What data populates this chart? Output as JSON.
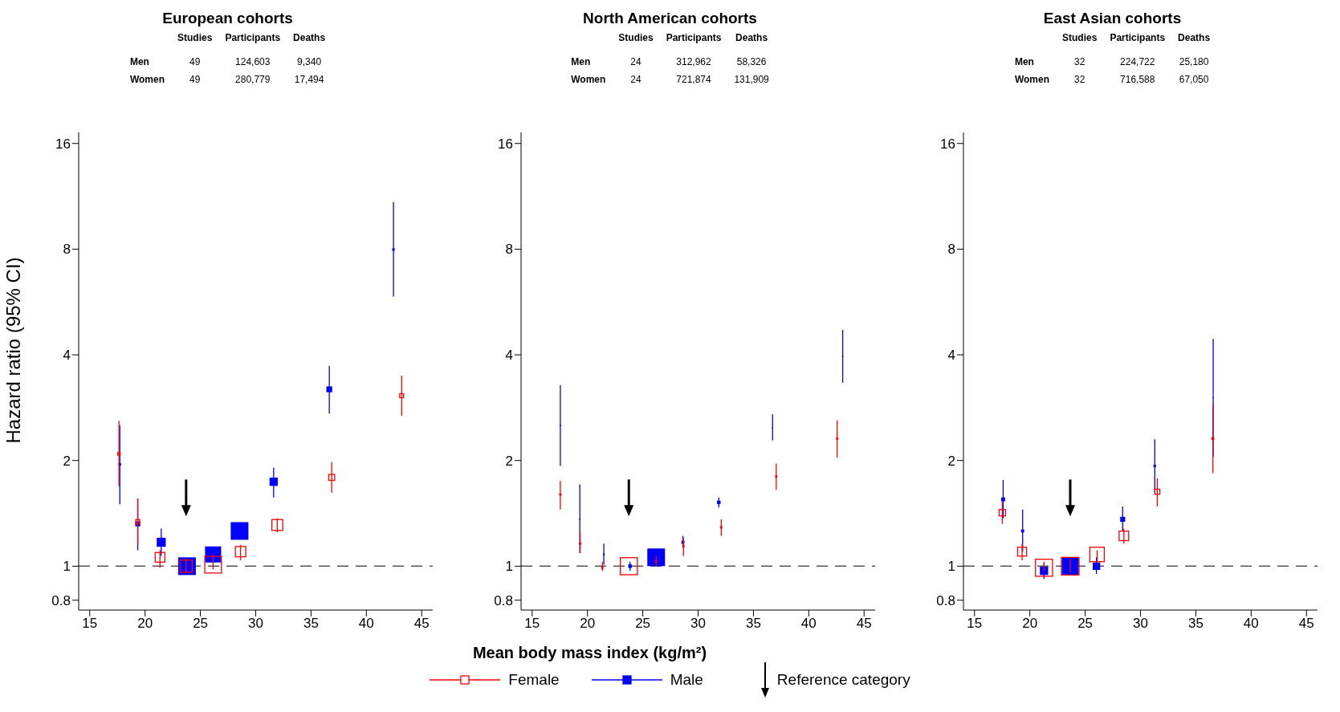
{
  "chart_data": [
    {
      "type": "scatter",
      "title": "European cohorts",
      "ylabel": "Hazard ratio (95% CI)",
      "legend": "bottom",
      "log": "y",
      "marker": "square",
      "xlim": [
        14,
        46
      ],
      "xticks": [
        15,
        20,
        25,
        30,
        35,
        40,
        45
      ],
      "ylim": [
        0.75,
        17.2
      ],
      "yticks": [
        0.8,
        1,
        2,
        4,
        8,
        16
      ],
      "ref_lines": [
        {
          "axis": "y",
          "value": 1,
          "color": "#555555",
          "line_style": "dashed"
        }
      ],
      "annotations": [
        "Studies",
        "Participants",
        "Deaths",
        "Men",
        "49",
        "124,603",
        "9,340",
        "Women",
        "49",
        "280,779",
        "17,494",
        "Reference category"
      ],
      "series": [
        {
          "name": "Female",
          "color": "#ff0000",
          "x": [
            17.64,
            19.34,
            21.35,
            23.71,
            26.15,
            28.63,
            31.95,
            36.87,
            43.19
          ],
          "values": [
            2.09,
            1.34,
            1.06,
            1,
            1.01,
            1.1,
            1.31,
            1.79,
            3.06
          ],
          "errors": [
            [
              1.69,
              2.59
            ],
            [
              1.15,
              1.56
            ],
            [
              0.99,
              1.11
            ],
            [
              0.96,
              1.05
            ],
            [
              0.98,
              1.07
            ],
            [
              1.04,
              1.15
            ],
            [
              1.25,
              1.37
            ],
            [
              1.62,
              1.98
            ],
            [
              2.68,
              3.49
            ]
          ],
          "sizes": [
            0.02,
            0.05,
            0.3,
            0.48,
            0.89,
            0.34,
            0.38,
            0.11,
            0.05
          ]
        },
        {
          "name": "Male",
          "color": "#0000ff",
          "x": [
            17.72,
            19.34,
            21.46,
            23.79,
            26.15,
            28.54,
            31.62,
            36.65,
            42.45
          ],
          "values": [
            1.95,
            1.32,
            1.17,
            1,
            1.08,
            1.26,
            1.74,
            3.19,
            7.98
          ],
          "errors": [
            [
              1.5,
              2.52
            ],
            [
              1.11,
              1.55
            ],
            [
              1.07,
              1.28
            ],
            null,
            [
              1.03,
              1.13
            ],
            [
              1.2,
              1.32
            ],
            [
              1.57,
              1.91
            ],
            [
              2.72,
              3.72
            ],
            [
              5.86,
              10.9
            ]
          ],
          "sizes": [
            0.02,
            0.08,
            0.26,
            1,
            0.83,
            1,
            0.22,
            0.11,
            0.02
          ]
        }
      ]
    },
    {
      "type": "scatter",
      "title": "North American cohorts",
      "xlabel": "Mean body mass index (kg/m²)",
      "log": "y",
      "marker": "square",
      "xlim": [
        14,
        46
      ],
      "xticks": [
        15,
        20,
        25,
        30,
        35,
        40,
        45
      ],
      "ylim": [
        0.75,
        17.2
      ],
      "yticks": [
        0.8,
        1,
        2,
        4,
        8,
        16
      ],
      "ref_lines": [
        {
          "axis": "y",
          "value": 1,
          "color": "#555555",
          "line_style": "dashed"
        }
      ],
      "annotations": [
        "Studies",
        "Participants",
        "Deaths",
        "Men",
        "24",
        "312,962",
        "58,326",
        "Women",
        "24",
        "721,874",
        "131,909"
      ],
      "series": [
        {
          "color": "#ff0000",
          "x": [
            17.55,
            19.34,
            21.35,
            23.74,
            26.21,
            28.68,
            32.09,
            37.06,
            42.57
          ],
          "values": [
            1.6,
            1.16,
            0.99,
            1,
            1.03,
            1.14,
            1.29,
            1.8,
            2.31
          ],
          "errors": [
            [
              1.45,
              1.75
            ],
            [
              1.09,
              1.25
            ],
            [
              0.97,
              1.03
            ],
            null,
            [
              1.0,
              1.07
            ],
            [
              1.07,
              1.2
            ],
            [
              1.22,
              1.36
            ],
            [
              1.65,
              1.96
            ],
            [
              2.04,
              2.6
            ]
          ],
          "sizes": [
            0.005,
            0.005,
            0.005,
            0.93,
            0.005,
            0.005,
            0.005,
            0.005,
            0.005
          ]
        },
        {
          "color": "#0000ff",
          "x": [
            17.55,
            19.31,
            21.48,
            23.85,
            26.21,
            28.63,
            31.87,
            36.73,
            43.07
          ],
          "values": [
            2.52,
            1.36,
            1.08,
            1,
            1.06,
            1.17,
            1.52,
            2.48,
            3.96
          ],
          "errors": [
            [
              1.93,
              3.28
            ],
            [
              1.09,
              1.71
            ],
            [
              1.01,
              1.16
            ],
            [
              0.97,
              1.03
            ],
            null,
            [
              1.13,
              1.22
            ],
            [
              1.47,
              1.57
            ],
            [
              2.28,
              2.71
            ],
            [
              3.33,
              4.71
            ]
          ],
          "sizes": [
            0.005,
            0.005,
            0.01,
            0.04,
            1,
            0.03,
            0.04,
            0.005,
            0.005
          ]
        }
      ]
    },
    {
      "type": "scatter",
      "title": "East Asian cohorts",
      "log": "y",
      "marker": "square",
      "xlim": [
        14,
        46
      ],
      "xticks": [
        15,
        20,
        25,
        30,
        35,
        40,
        45
      ],
      "ylim": [
        0.75,
        17.2
      ],
      "yticks": [
        0.8,
        1,
        2,
        4,
        8,
        16
      ],
      "ref_lines": [
        {
          "axis": "y",
          "value": 1,
          "color": "#555555",
          "line_style": "dashed"
        }
      ],
      "annotations": [
        "Studies",
        "Participants",
        "Deaths",
        "Men",
        "32",
        "224,722",
        "25,180",
        "Women",
        "32",
        "716,588",
        "67,050"
      ],
      "series": [
        {
          "color": "#ff0000",
          "x": [
            17.51,
            19.3,
            21.28,
            23.65,
            26.08,
            28.5,
            31.52,
            36.54
          ],
          "values": [
            1.42,
            1.1,
            0.99,
            1,
            1.08,
            1.22,
            1.63,
            2.31
          ],
          "errors": [
            [
              1.32,
              1.53
            ],
            [
              1.04,
              1.16
            ],
            [
              0.97,
              1.03
            ],
            [
              0.96,
              1.05
            ],
            [
              1.03,
              1.11
            ],
            [
              1.16,
              1.28
            ],
            [
              1.48,
              1.78
            ],
            [
              1.84,
              2.89
            ]
          ],
          "sizes": [
            0.13,
            0.25,
            0.93,
            1,
            0.67,
            0.29,
            0.08,
            0.01
          ]
        },
        {
          "color": "#0000ff",
          "x": [
            17.59,
            19.35,
            21.28,
            23.65,
            26.02,
            28.39,
            31.29,
            36.57
          ],
          "values": [
            1.55,
            1.26,
            0.97,
            1,
            1.0,
            1.36,
            1.93,
            3.02
          ],
          "errors": [
            [
              1.37,
              1.76
            ],
            [
              1.1,
              1.45
            ],
            [
              0.92,
              1.02
            ],
            null,
            [
              0.95,
              1.06
            ],
            [
              1.26,
              1.48
            ],
            [
              1.62,
              2.3
            ],
            [
              2.05,
              4.44
            ]
          ],
          "sizes": [
            0.05,
            0.03,
            0.22,
            0.93,
            0.18,
            0.08,
            0.02,
            0.003
          ]
        }
      ]
    }
  ]
}
